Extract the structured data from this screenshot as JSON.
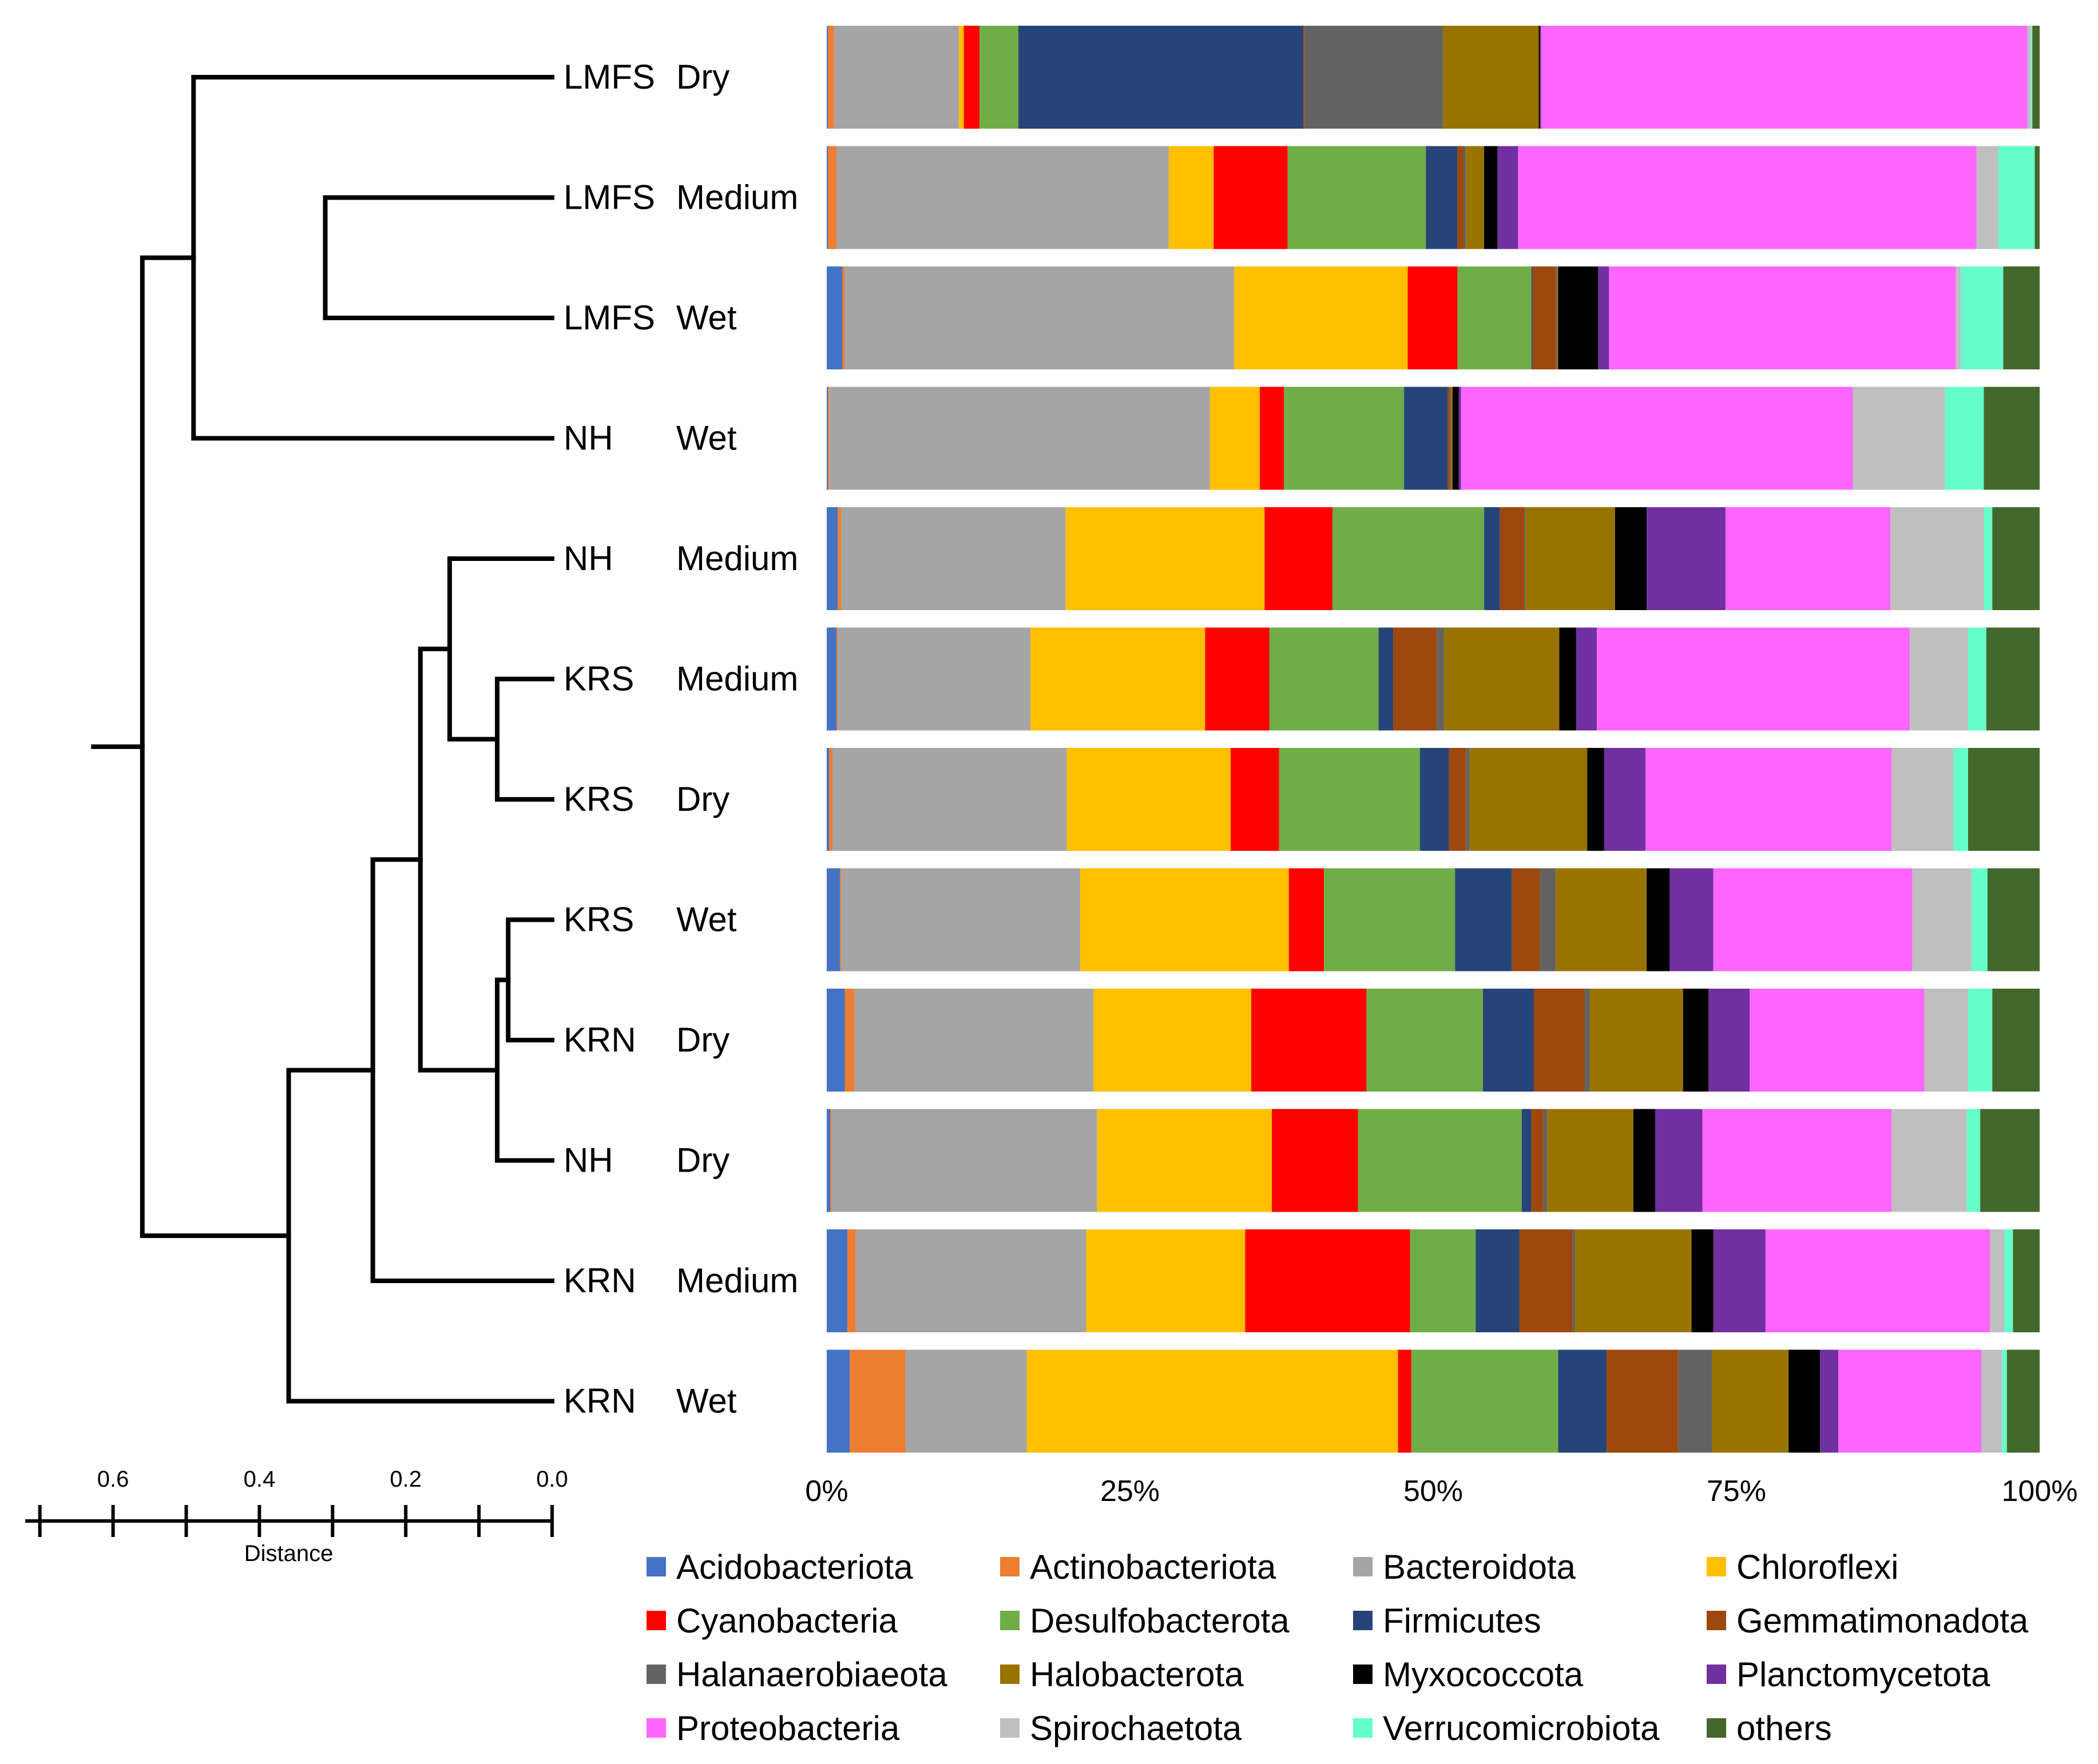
{
  "chart_data": {
    "type": "stacked-bar",
    "orientation": "horizontal",
    "title": "",
    "xlabel": "",
    "ylabel": "",
    "xlim": [
      0,
      100
    ],
    "x_ticks": [
      "0%",
      "25%",
      "50%",
      "75%",
      "100%"
    ],
    "legend_position": "bottom",
    "samples": [
      {
        "site": "LMFS",
        "condition": "Dry"
      },
      {
        "site": "LMFS",
        "condition": "Medium"
      },
      {
        "site": "LMFS",
        "condition": "Wet"
      },
      {
        "site": "NH",
        "condition": "Wet"
      },
      {
        "site": "NH",
        "condition": "Medium"
      },
      {
        "site": "KRS",
        "condition": "Medium"
      },
      {
        "site": "KRS",
        "condition": "Dry"
      },
      {
        "site": "KRS",
        "condition": "Wet"
      },
      {
        "site": "KRN",
        "condition": "Dry"
      },
      {
        "site": "NH",
        "condition": "Dry"
      },
      {
        "site": "KRN",
        "condition": "Medium"
      },
      {
        "site": "KRN",
        "condition": "Wet"
      }
    ],
    "series": [
      {
        "name": "Acidobacteriota",
        "color": "#4472C4",
        "values": [
          0.1,
          0.1,
          1.3,
          0.1,
          0.9,
          0.8,
          0.2,
          1.1,
          1.5,
          0.3,
          1.7,
          1.9
        ]
      },
      {
        "name": "Actinobacteriota",
        "color": "#ED7D31",
        "values": [
          0.5,
          0.7,
          0.2,
          0.1,
          0.3,
          0.1,
          0.3,
          0.1,
          0.8,
          0.1,
          0.7,
          4.6
        ]
      },
      {
        "name": "Bacteroidota",
        "color": "#A5A5A5",
        "values": [
          10.3,
          27.4,
          32.1,
          31.4,
          18.5,
          15.9,
          19.3,
          19.7,
          19.7,
          21.9,
          19.0,
          10.0
        ]
      },
      {
        "name": "Chloroflexi",
        "color": "#FFC000",
        "values": [
          0.4,
          3.7,
          14.3,
          4.1,
          16.4,
          14.4,
          13.5,
          17.2,
          13.0,
          14.4,
          13.1,
          30.6
        ]
      },
      {
        "name": "Cyanobacteria",
        "color": "#FF0000",
        "values": [
          1.3,
          6.1,
          4.1,
          2.0,
          5.6,
          5.3,
          4.0,
          2.9,
          9.5,
          7.1,
          13.6,
          1.1
        ]
      },
      {
        "name": "Desulfobacterota",
        "color": "#70AD47",
        "values": [
          3.2,
          11.4,
          6.1,
          9.9,
          12.5,
          9.0,
          11.6,
          10.8,
          9.6,
          13.5,
          5.4,
          12.1
        ]
      },
      {
        "name": "Firmicutes",
        "color": "#264478",
        "values": [
          23.5,
          2.6,
          0.1,
          3.6,
          1.3,
          1.2,
          2.4,
          4.7,
          4.2,
          0.8,
          3.6,
          4.0
        ]
      },
      {
        "name": "Gemmatimonadota",
        "color": "#9E480E",
        "values": [
          0.1,
          0.5,
          1.9,
          0.2,
          2.0,
          3.6,
          1.4,
          2.3,
          4.2,
          1.0,
          4.4,
          5.9
        ]
      },
      {
        "name": "Halanaerobiaeota",
        "color": "#636363",
        "values": [
          11.4,
          0.2,
          0.1,
          0.1,
          0.1,
          0.6,
          0.3,
          1.3,
          0.4,
          0.3,
          0.2,
          2.8
        ]
      },
      {
        "name": "Halobacterota",
        "color": "#997300",
        "values": [
          7.9,
          1.5,
          0.1,
          0.1,
          7.4,
          9.5,
          9.7,
          7.5,
          7.7,
          7.1,
          9.6,
          6.3
        ]
      },
      {
        "name": "Myxococcota",
        "color": "#000000",
        "values": [
          0.1,
          1.1,
          3.3,
          0.5,
          2.6,
          1.4,
          1.4,
          1.9,
          2.1,
          1.8,
          1.8,
          2.6
        ]
      },
      {
        "name": "Planctomycetota",
        "color": "#7030A0",
        "values": [
          0.1,
          1.7,
          0.9,
          0.2,
          6.5,
          1.7,
          3.4,
          3.6,
          3.4,
          3.9,
          4.3,
          1.5
        ]
      },
      {
        "name": "Proteobacteria",
        "color": "#FF66FF",
        "values": [
          40.1,
          37.8,
          28.6,
          32.3,
          13.6,
          25.8,
          20.3,
          16.4,
          14.4,
          15.6,
          18.5,
          11.8
        ]
      },
      {
        "name": "Spirochaetota",
        "color": "#BFBFBF",
        "values": [
          0.3,
          1.8,
          0.4,
          7.6,
          7.7,
          4.8,
          5.1,
          4.9,
          3.6,
          6.2,
          1.2,
          1.7
        ]
      },
      {
        "name": "Verrucomicrobiota",
        "color": "#66FFCC",
        "values": [
          0.1,
          3.0,
          3.5,
          3.2,
          0.7,
          1.5,
          1.2,
          1.3,
          2.0,
          1.1,
          0.7,
          0.4
        ]
      },
      {
        "name": "others",
        "color": "#43682B",
        "values": [
          0.6,
          0.4,
          3.0,
          4.6,
          3.9,
          4.4,
          5.9,
          4.3,
          3.9,
          4.9,
          2.2,
          2.7
        ]
      }
    ],
    "dendrogram": {
      "axis_label": "Distance",
      "axis_ticks": [
        "0.6",
        "0.4",
        "0.2",
        "0.0"
      ],
      "axis_tick_values": [
        0.6,
        0.4,
        0.2,
        0.0
      ],
      "axis_range": [
        0.72,
        0.0
      ],
      "merges": [
        {
          "a": [
            1,
            2
          ],
          "height": 0.31
        },
        {
          "a": [
            0,
            3
          ],
          "height": 0.49
        },
        {
          "a": [
            5,
            6
          ],
          "height": 0.075
        },
        {
          "a": [
            4,
            6
          ],
          "height": 0.14
        },
        {
          "a": [
            7,
            8
          ],
          "height": 0.06
        },
        {
          "a": [
            7,
            9
          ],
          "height": 0.075
        },
        {
          "a": [
            4,
            9
          ],
          "height": 0.18
        },
        {
          "a": [
            4,
            10
          ],
          "height": 0.245
        },
        {
          "a": [
            4,
            11
          ],
          "height": 0.36
        },
        {
          "a": [
            0,
            11
          ],
          "height": 0.56
        },
        {
          "a": [
            0,
            11
          ],
          "height": 0.63
        }
      ]
    }
  }
}
